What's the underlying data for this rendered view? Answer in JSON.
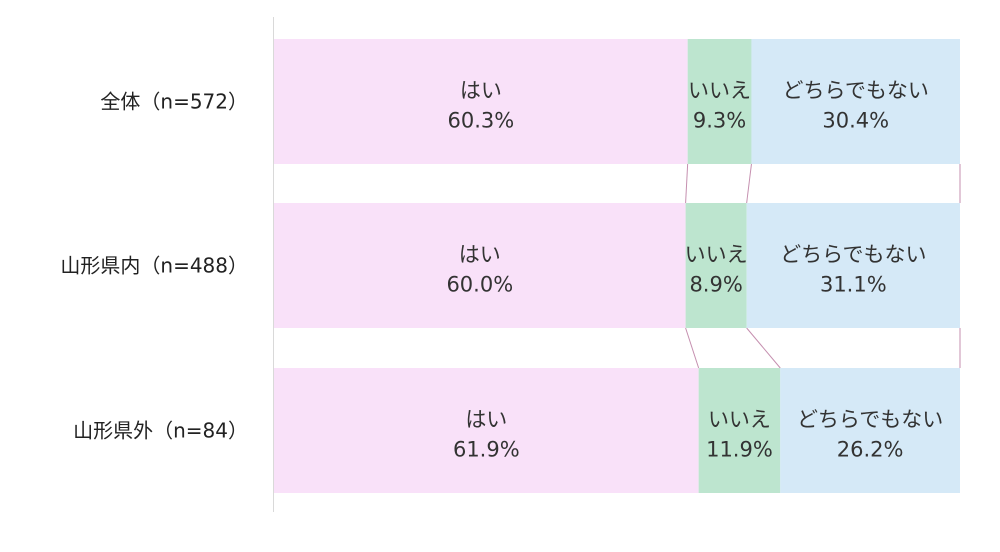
{
  "chart_data": {
    "type": "bar",
    "orientation": "horizontal",
    "stacked": "percent",
    "categories": [
      "全体（n=572）",
      "山形県内（n=488）",
      "山形県外（n=84）"
    ],
    "series": [
      {
        "name": "はい",
        "values": [
          60.3,
          60.0,
          61.9
        ],
        "labels": [
          "60.3%",
          "60.0%",
          "61.9%"
        ],
        "color": "#F9E1F9"
      },
      {
        "name": "いいえ",
        "values": [
          9.3,
          8.9,
          11.9
        ],
        "labels": [
          "9.3%",
          "8.9%",
          "11.9%"
        ],
        "color": "#BDE5CF"
      },
      {
        "name": "どちらでもない",
        "values": [
          30.4,
          31.1,
          26.2
        ],
        "labels": [
          "30.4%",
          "31.1%",
          "26.2%"
        ],
        "color": "#D5E9F7"
      }
    ],
    "xlim": [
      0,
      100
    ],
    "series_lines": true,
    "series_line_color": "#C58FAF",
    "axis_color": "#D9D9D9",
    "grid": false,
    "legend": "none"
  }
}
